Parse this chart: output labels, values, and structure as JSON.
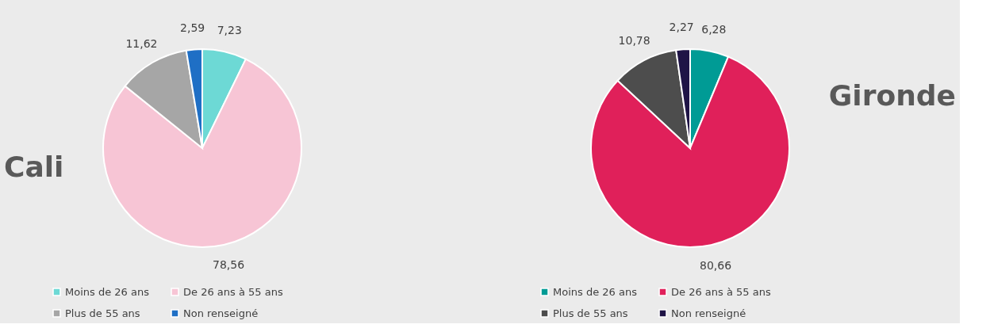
{
  "chart_data": [
    {
      "type": "pie",
      "title": "Cali",
      "categories": [
        "Moins de 26 ans",
        "De 26 ans à 55 ans",
        "Plus de 55 ans",
        "Non renseigné"
      ],
      "values": [
        7.23,
        78.56,
        11.62,
        2.59
      ],
      "colors": [
        "#6dd9d5",
        "#f7c5d5",
        "#a6a6a6",
        "#1f6fc5"
      ],
      "value_labels": [
        "7,23",
        "78,56",
        "11,62",
        "2,59"
      ],
      "legend": "bottom"
    },
    {
      "type": "pie",
      "title": "Gironde",
      "categories": [
        "Moins de 26 ans",
        "De 26 ans à 55 ans",
        "Plus de 55 ans",
        "Non renseigné"
      ],
      "values": [
        6.28,
        80.66,
        10.78,
        2.27
      ],
      "colors": [
        "#009b95",
        "#e0205a",
        "#4d4d4d",
        "#1f1446"
      ],
      "value_labels": [
        "6,28",
        "80,66",
        "10,78",
        "2,27"
      ],
      "legend": "bottom"
    }
  ]
}
